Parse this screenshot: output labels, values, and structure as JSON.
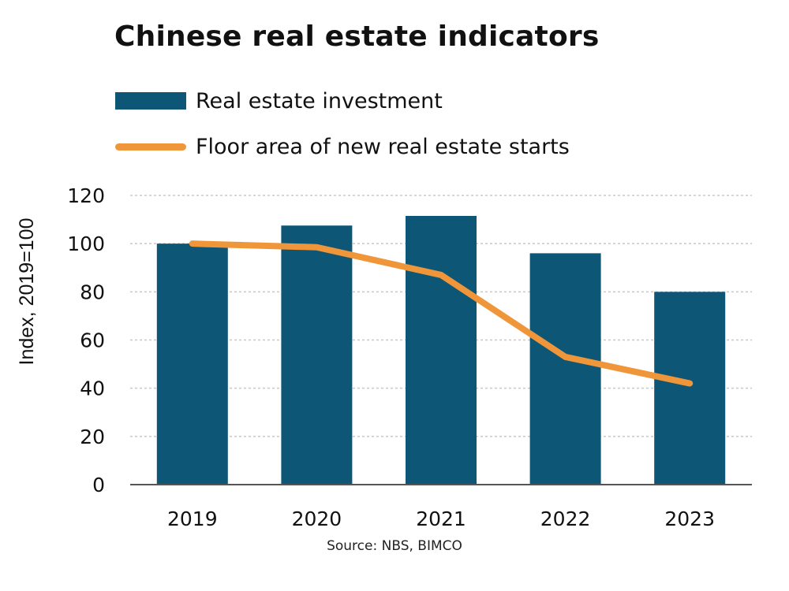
{
  "colors": {
    "bar": "#0d5676",
    "line": "#f0963a",
    "grid": "#c8c8c8",
    "axis": "#555555"
  },
  "chart_data": {
    "type": "bar",
    "title": "Chinese real estate indicators",
    "ylabel": "Index, 2019=100",
    "xlabel": "",
    "categories": [
      "2019",
      "2020",
      "2021",
      "2022",
      "2023"
    ],
    "ylim": [
      0,
      120
    ],
    "yticks": [
      0,
      20,
      40,
      60,
      80,
      100,
      120
    ],
    "grid": true,
    "legend_placement": "top-left",
    "series": [
      {
        "name": "Real estate investment",
        "kind": "bar",
        "values": [
          100,
          107.5,
          111.5,
          96,
          80
        ]
      },
      {
        "name": "Floor area of new real estate starts",
        "kind": "line",
        "values": [
          100,
          98.5,
          87,
          53,
          42
        ]
      }
    ],
    "source": "Source: NBS, BIMCO"
  }
}
